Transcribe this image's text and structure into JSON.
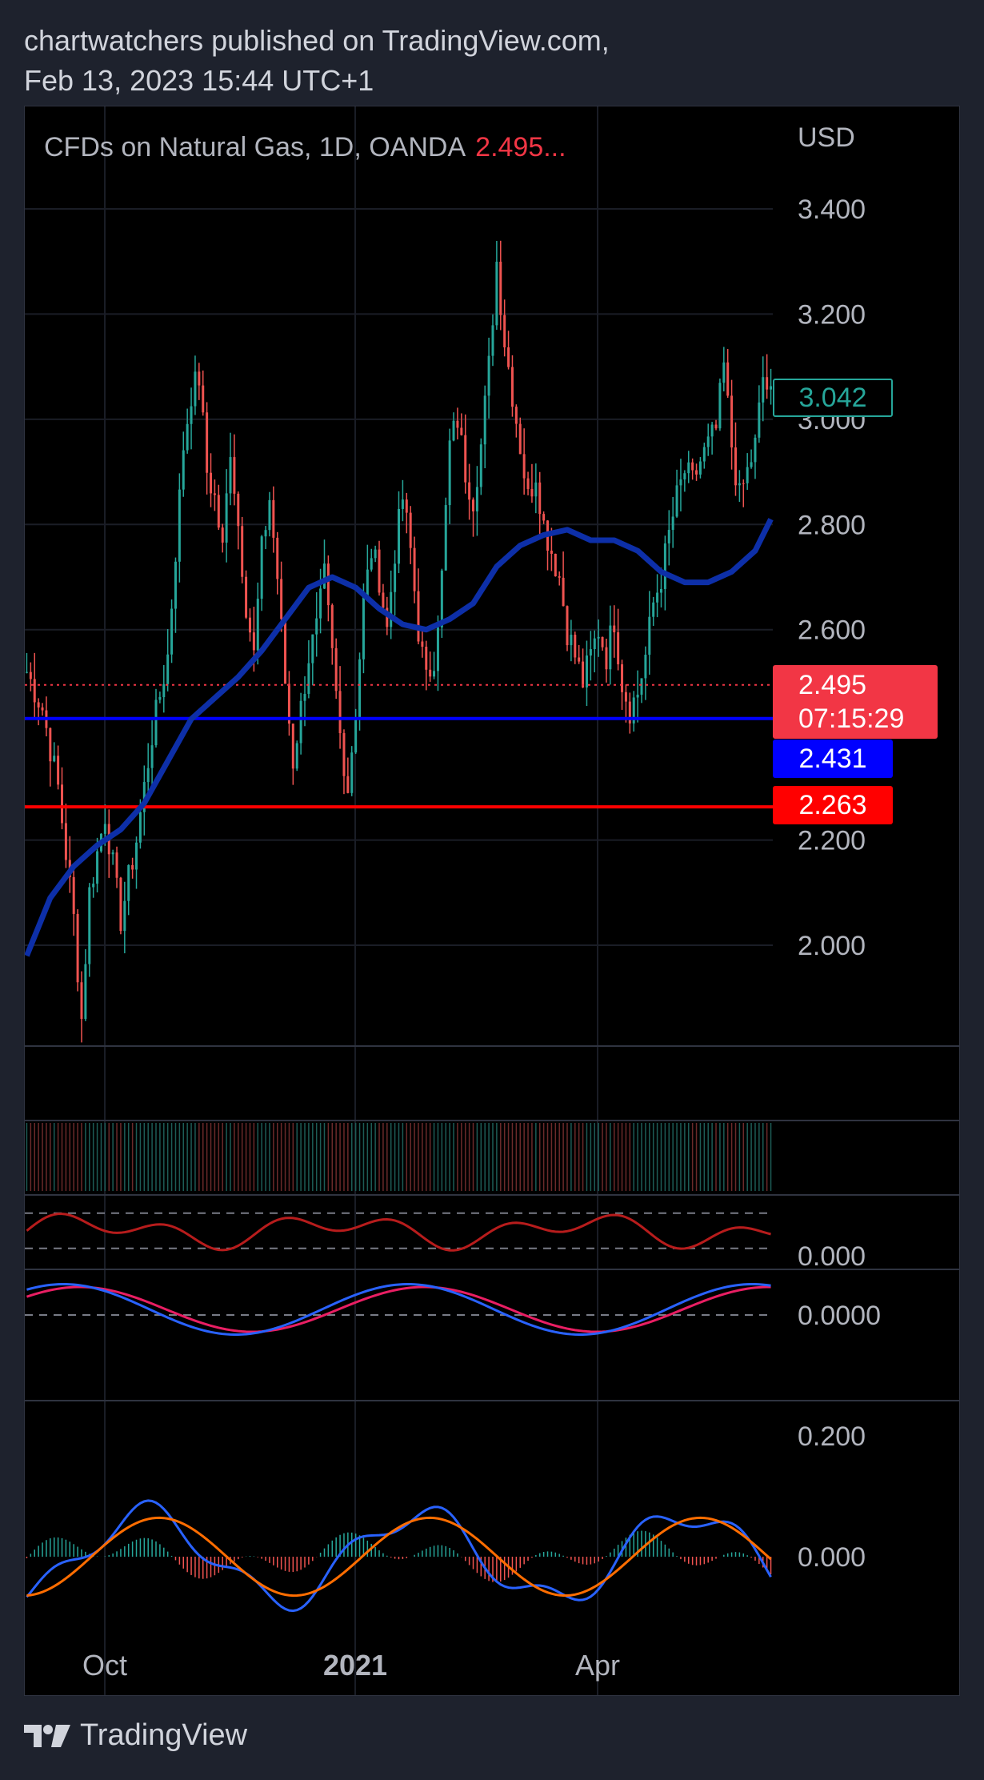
{
  "header": {
    "line1": "chartwatchers published on TradingView.com,",
    "line2": "Feb 13, 2023 15:44 UTC+1"
  },
  "symbol": {
    "title": "CFDs on Natural Gas, 1D, OANDA",
    "last_price": "2.495...",
    "currency": "USD"
  },
  "price_tags": {
    "last_close": "3.042",
    "current_price": "2.495",
    "countdown": "07:15:29",
    "blue_level": "2.431",
    "red_level": "2.263"
  },
  "footer": {
    "brand": "TradingView"
  },
  "colors": {
    "background": "#000000",
    "frame": "#1e222d",
    "up": "#26a69a",
    "down": "#ef5350",
    "ma": "#0d2fa8",
    "blue_level": "#0000ff",
    "red_level": "#ff0000",
    "price_tag": "#f23645",
    "rsi": "#b71c1c",
    "stoch_k": "#2962ff",
    "stoch_d": "#e91e63",
    "macd": "#2962ff",
    "signal": "#ff6d00"
  },
  "chart_data": {
    "type": "candlestick",
    "x_labels": [
      "Oct",
      "2021",
      "Apr"
    ],
    "price_axis": {
      "ticks": [
        "3.400",
        "3.200",
        "3.000",
        "2.800",
        "2.600",
        "2.200",
        "2.000"
      ],
      "ylim": [
        1.8,
        3.5
      ]
    },
    "horizontal_levels": [
      {
        "price": 2.495,
        "style": "dotted",
        "color": "#f23645"
      },
      {
        "price": 2.431,
        "style": "solid",
        "color": "#0000ff"
      },
      {
        "price": 2.263,
        "style": "solid",
        "color": "#ff0000"
      }
    ],
    "moving_average": {
      "points": [
        [
          0,
          1.98
        ],
        [
          6,
          2.09
        ],
        [
          12,
          2.15
        ],
        [
          18,
          2.19
        ],
        [
          24,
          2.22
        ],
        [
          30,
          2.27
        ],
        [
          36,
          2.35
        ],
        [
          42,
          2.43
        ],
        [
          48,
          2.47
        ],
        [
          54,
          2.51
        ],
        [
          60,
          2.56
        ],
        [
          66,
          2.62
        ],
        [
          72,
          2.68
        ],
        [
          78,
          2.7
        ],
        [
          84,
          2.68
        ],
        [
          90,
          2.64
        ],
        [
          96,
          2.61
        ],
        [
          102,
          2.6
        ],
        [
          108,
          2.62
        ],
        [
          114,
          2.65
        ],
        [
          120,
          2.72
        ],
        [
          126,
          2.76
        ],
        [
          132,
          2.78
        ],
        [
          138,
          2.79
        ],
        [
          144,
          2.77
        ],
        [
          150,
          2.77
        ],
        [
          156,
          2.75
        ],
        [
          162,
          2.71
        ],
        [
          168,
          2.69
        ],
        [
          174,
          2.69
        ],
        [
          180,
          2.71
        ],
        [
          186,
          2.75
        ],
        [
          190,
          2.81
        ]
      ]
    },
    "ohlc_close_path": [
      [
        0,
        2.52
      ],
      [
        4,
        2.45
      ],
      [
        8,
        2.3
      ],
      [
        12,
        2.05
      ],
      [
        14,
        1.86
      ],
      [
        16,
        2.1
      ],
      [
        20,
        2.25
      ],
      [
        24,
        2.05
      ],
      [
        28,
        2.2
      ],
      [
        32,
        2.4
      ],
      [
        36,
        2.55
      ],
      [
        38,
        2.75
      ],
      [
        40,
        2.95
      ],
      [
        42,
        3.05
      ],
      [
        44,
        3.08
      ],
      [
        46,
        2.9
      ],
      [
        48,
        2.85
      ],
      [
        50,
        2.75
      ],
      [
        52,
        2.95
      ],
      [
        54,
        2.8
      ],
      [
        56,
        2.65
      ],
      [
        58,
        2.55
      ],
      [
        60,
        2.75
      ],
      [
        62,
        2.85
      ],
      [
        64,
        2.7
      ],
      [
        66,
        2.5
      ],
      [
        68,
        2.35
      ],
      [
        70,
        2.45
      ],
      [
        72,
        2.55
      ],
      [
        74,
        2.6
      ],
      [
        76,
        2.7
      ],
      [
        78,
        2.55
      ],
      [
        80,
        2.4
      ],
      [
        82,
        2.3
      ],
      [
        84,
        2.45
      ],
      [
        86,
        2.65
      ],
      [
        88,
        2.75
      ],
      [
        90,
        2.7
      ],
      [
        92,
        2.6
      ],
      [
        94,
        2.75
      ],
      [
        96,
        2.85
      ],
      [
        98,
        2.75
      ],
      [
        100,
        2.6
      ],
      [
        102,
        2.5
      ],
      [
        104,
        2.55
      ],
      [
        106,
        2.7
      ],
      [
        108,
        2.95
      ],
      [
        110,
        3.0
      ],
      [
        112,
        2.9
      ],
      [
        114,
        2.85
      ],
      [
        116,
        2.95
      ],
      [
        118,
        3.1
      ],
      [
        120,
        3.3
      ],
      [
        122,
        3.15
      ],
      [
        124,
        3.05
      ],
      [
        126,
        2.95
      ],
      [
        128,
        2.85
      ],
      [
        130,
        2.9
      ],
      [
        132,
        2.8
      ],
      [
        134,
        2.75
      ],
      [
        136,
        2.7
      ],
      [
        138,
        2.6
      ],
      [
        140,
        2.55
      ],
      [
        142,
        2.5
      ],
      [
        144,
        2.55
      ],
      [
        146,
        2.6
      ],
      [
        148,
        2.55
      ],
      [
        150,
        2.62
      ],
      [
        152,
        2.5
      ],
      [
        154,
        2.45
      ],
      [
        156,
        2.48
      ],
      [
        158,
        2.55
      ],
      [
        160,
        2.65
      ],
      [
        162,
        2.7
      ],
      [
        164,
        2.78
      ],
      [
        166,
        2.85
      ],
      [
        168,
        2.9
      ],
      [
        170,
        2.88
      ],
      [
        172,
        2.92
      ],
      [
        174,
        2.95
      ],
      [
        176,
        2.98
      ],
      [
        178,
        3.1
      ],
      [
        180,
        2.95
      ],
      [
        182,
        2.85
      ],
      [
        184,
        2.9
      ],
      [
        186,
        2.95
      ],
      [
        188,
        3.08
      ],
      [
        190,
        3.04
      ]
    ],
    "indicators": {
      "rsi_axis_label": "0.000",
      "stochastic_axis_label": "0.0000",
      "macd_axis_ticks": [
        "0.200",
        "0.000"
      ]
    }
  }
}
